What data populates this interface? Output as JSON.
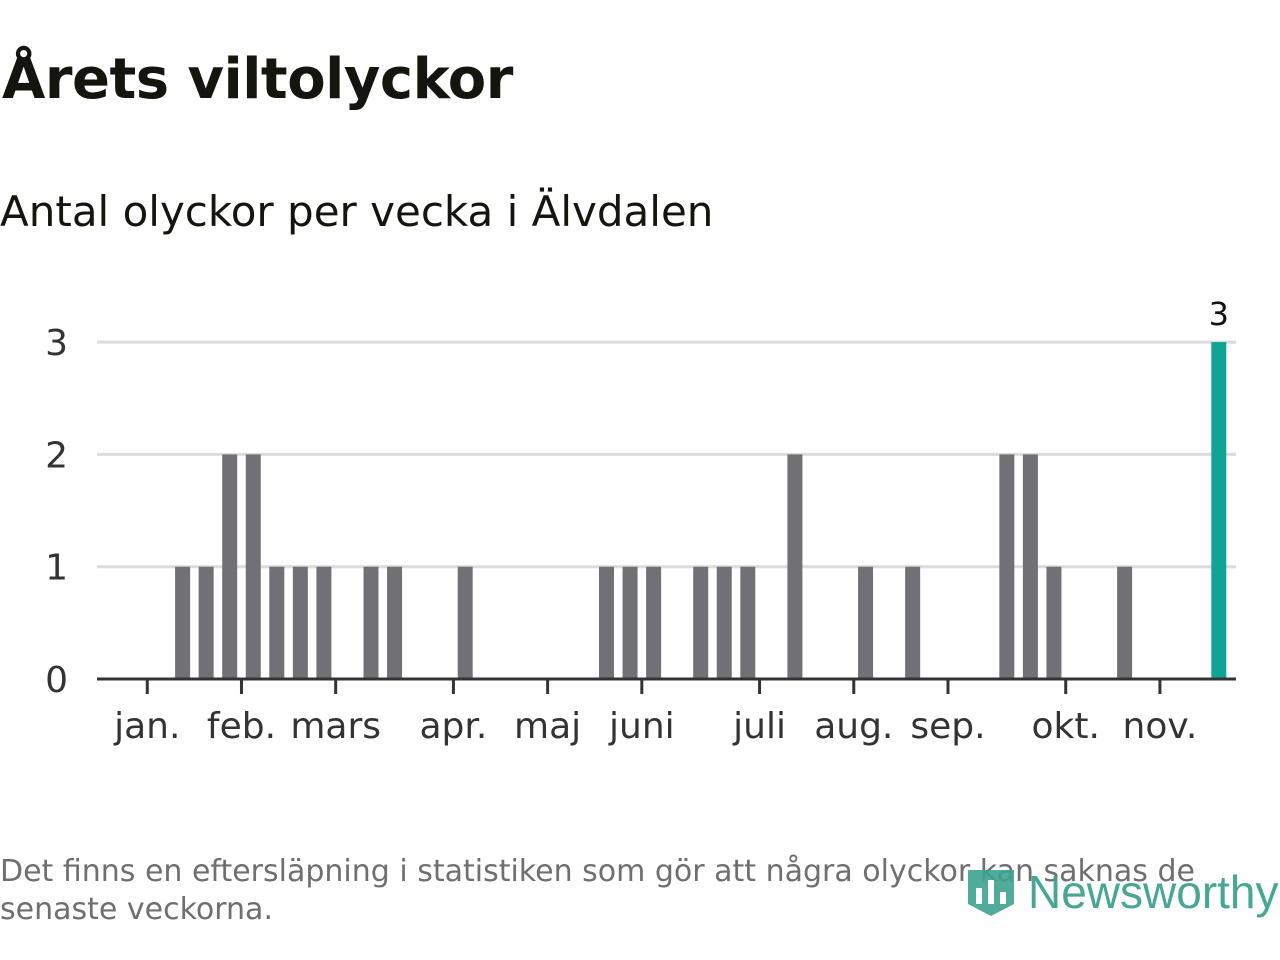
{
  "header": {
    "title": "Årets viltolyckor",
    "subtitle": "Antal olyckor per vecka i Älvdalen"
  },
  "footer": {
    "note": "Det finns en eftersläpning i statistiken som gör att några olyckor kan saknas de senaste veckorna.",
    "logo_text": "Newsworthy"
  },
  "colors": {
    "bar": "#717075",
    "highlight": "#0ea496",
    "grid": "#dcdcdc",
    "axis": "#333333",
    "brand": "#3ea28f"
  },
  "chart_data": {
    "type": "bar",
    "title": "Årets viltolyckor",
    "subtitle": "Antal olyckor per vecka i Älvdalen",
    "xlabel": "",
    "ylabel": "",
    "ylim": [
      0,
      3
    ],
    "y_ticks": [
      0,
      1,
      2,
      3
    ],
    "grid": true,
    "weeks": [
      1,
      2,
      3,
      4,
      5,
      6,
      7,
      8,
      9,
      10,
      11,
      12,
      13,
      14,
      15,
      16,
      17,
      18,
      19,
      20,
      21,
      22,
      23,
      24,
      25,
      26,
      27,
      28,
      29,
      30,
      31,
      32,
      33,
      34,
      35,
      36,
      37,
      38,
      39,
      40,
      41,
      42,
      43,
      44,
      45,
      46,
      47,
      48
    ],
    "values": [
      0,
      0,
      1,
      1,
      2,
      2,
      1,
      1,
      1,
      0,
      1,
      1,
      0,
      0,
      1,
      0,
      0,
      0,
      0,
      0,
      1,
      1,
      1,
      0,
      1,
      1,
      1,
      0,
      2,
      0,
      0,
      1,
      0,
      1,
      0,
      0,
      0,
      2,
      2,
      1,
      0,
      0,
      1,
      0,
      0,
      0,
      3,
      0
    ],
    "highlight_week": 47,
    "value_labels": [
      {
        "week": 47,
        "label": "3"
      }
    ],
    "month_ticks": [
      {
        "label": "jan.",
        "week": 1.5
      },
      {
        "label": "feb.",
        "week": 5.5
      },
      {
        "label": "mars",
        "week": 9.5
      },
      {
        "label": "apr.",
        "week": 14.5
      },
      {
        "label": "maj",
        "week": 18.5
      },
      {
        "label": "juni",
        "week": 22.5
      },
      {
        "label": "juli",
        "week": 27.5
      },
      {
        "label": "aug.",
        "week": 31.5
      },
      {
        "label": "sep.",
        "week": 35.5
      },
      {
        "label": "okt.",
        "week": 40.5
      },
      {
        "label": "nov.",
        "week": 44.5
      }
    ]
  }
}
